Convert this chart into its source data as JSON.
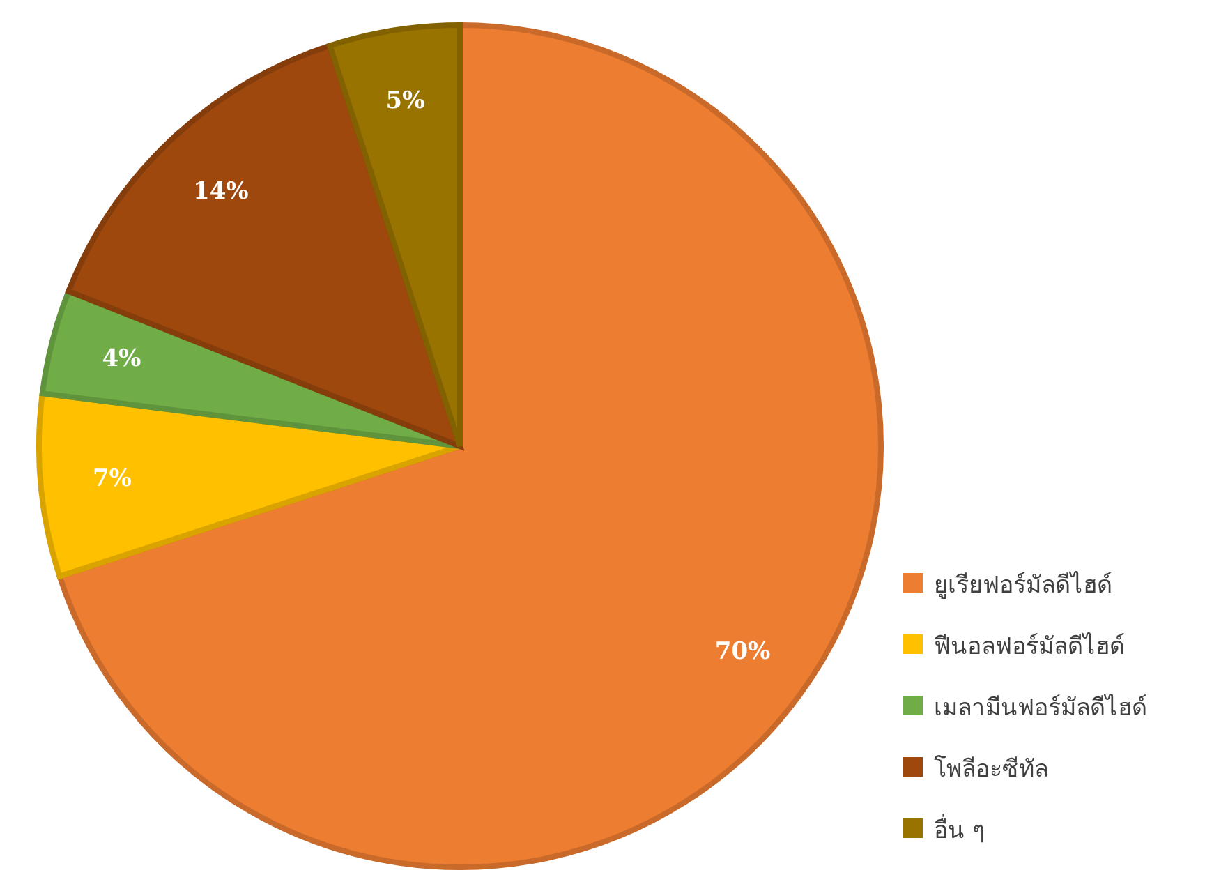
{
  "chart_data": {
    "type": "pie",
    "categories": [
      "ยูเรียฟอร์มัลดีไฮด์",
      "ฟีนอลฟอร์มัลดีไฮด์",
      "เมลามีนฟอร์มัลดีไฮด์",
      "โพลีอะซีทัล",
      "อื่น ๆ"
    ],
    "values": [
      70,
      7,
      4,
      14,
      5
    ],
    "colors": [
      "#ed7d31",
      "#ffc000",
      "#70ad47",
      "#9e480e",
      "#997300"
    ],
    "value_labels": [
      "70%",
      "7%",
      "4%",
      "14%",
      "5%"
    ],
    "legend": "bottom right"
  }
}
